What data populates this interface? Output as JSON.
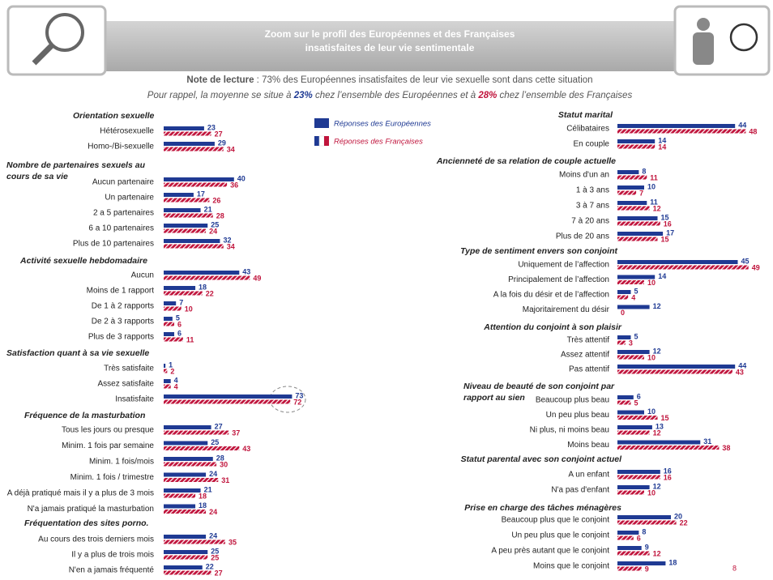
{
  "header": {
    "title_lines": [
      "Zoom sur le profil des Européennes et des Françaises",
      "insatisfaites de leur vie sentimentale"
    ]
  },
  "note": {
    "label": "Note de lecture",
    "text": " : 73% des Européennes insatisfaites de leur vie sexuelle sont dans cette situation"
  },
  "reminder": {
    "parts": [
      "Pour rappel, la moyenne se situe à ",
      "23%",
      " chez l’ensemble des Européennes et à ",
      "28%",
      " chez l’ensemble des Françaises"
    ]
  },
  "legend": {
    "europe": "Réponses des Européennes",
    "france": "Réponses des Françaises"
  },
  "colors": {
    "europe": "#1f3a93",
    "france": "#c0143c"
  },
  "sections": [
    {
      "title": [
        "Orientation sexuelle"
      ],
      "categories": [
        "Hétérosexuelle",
        "Homo-/Bi-sexuelle"
      ],
      "europe": [
        23,
        29
      ],
      "france": [
        27,
        34
      ]
    },
    {
      "title": [
        "Nombre de partenaires sexuels au",
        "cours de sa vie"
      ],
      "categories": [
        "Aucun partenaire",
        "Un partenaire",
        "2 a 5 partenaires",
        "6 a 10 partenaires",
        "Plus de 10 partenaires"
      ],
      "europe": [
        40,
        17,
        21,
        25,
        32
      ],
      "france": [
        36,
        26,
        28,
        24,
        34
      ]
    },
    {
      "title": [
        "Activité sexuelle hebdomadaire"
      ],
      "categories": [
        "Aucun",
        "Moins de 1 rapport",
        "De 1 à 2 rapports",
        "De 2 à 3 rapports",
        "Plus de 3 rapports"
      ],
      "europe": [
        43,
        18,
        7,
        5,
        6
      ],
      "france": [
        49,
        22,
        10,
        6,
        11
      ]
    },
    {
      "title": [
        "Satisfaction quant à sa vie sexuelle"
      ],
      "categories": [
        "Très satisfaite",
        "Assez satisfaite",
        "Insatisfaite"
      ],
      "europe": [
        1,
        4,
        73
      ],
      "france": [
        2,
        4,
        72
      ]
    },
    {
      "title": [
        "Fréquence de la masturbation"
      ],
      "categories": [
        "Tous les jours ou presque",
        "Minim. 1 fois par semaine",
        "Minim. 1 fois/mois",
        "Minim. 1 fois / trimestre",
        "A déjà pratiqué mais il y a plus de 3 mois",
        "N'a jamais pratiqué la masturbation"
      ],
      "europe": [
        27,
        25,
        28,
        24,
        21,
        18
      ],
      "france": [
        37,
        43,
        30,
        31,
        18,
        24
      ]
    },
    {
      "title": [
        "Fréquentation des sites porno."
      ],
      "categories": [
        "Au cours des trois derniers mois",
        "Il y a plus de trois mois",
        "N'en a jamais fréquenté"
      ],
      "europe": [
        24,
        25,
        22
      ],
      "france": [
        35,
        25,
        27
      ]
    },
    {
      "title": [
        "Statut marital"
      ],
      "categories": [
        "Célibataires",
        "En couple"
      ],
      "europe": [
        44,
        14
      ],
      "france": [
        48,
        14
      ]
    },
    {
      "title": [
        "Ancienneté de sa relation de couple actuelle"
      ],
      "categories": [
        "Moins d'un an",
        "1 à 3 ans",
        "3 à 7 ans",
        "7 à 20 ans",
        "Plus de 20 ans"
      ],
      "europe": [
        8,
        10,
        11,
        15,
        17
      ],
      "france": [
        11,
        7,
        12,
        16,
        15
      ]
    },
    {
      "title": [
        "Type de sentiment envers son conjoint"
      ],
      "categories": [
        "Uniquement de l’affection",
        "Principalement de l’affection",
        "A la fois du désir et de l’affection",
        "Majoritairement du désir"
      ],
      "europe": [
        45,
        14,
        5,
        12
      ],
      "france": [
        49,
        10,
        4,
        0
      ]
    },
    {
      "title": [
        "Attention du conjoint à son plaisir"
      ],
      "categories": [
        "Très attentif",
        "Assez attentif",
        "Pas attentif"
      ],
      "europe": [
        5,
        12,
        44
      ],
      "france": [
        3,
        10,
        43
      ]
    },
    {
      "title": [
        "Niveau de beauté de son conjoint par",
        "rapport au sien"
      ],
      "categories": [
        "Beaucoup plus beau",
        "Un peu plus beau",
        "Ni plus, ni moins beau",
        "Moins beau"
      ],
      "europe": [
        6,
        10,
        13,
        31
      ],
      "france": [
        5,
        15,
        12,
        38
      ]
    },
    {
      "title": [
        "Statut parental avec son conjoint actuel"
      ],
      "categories": [
        "A un enfant",
        "N'a pas d'enfant"
      ],
      "europe": [
        16,
        12
      ],
      "france": [
        16,
        10
      ]
    },
    {
      "title": [
        "Prise en charge des tâches ménagères"
      ],
      "categories": [
        "Beaucoup plus que le conjoint",
        "Un peu plus que le conjoint",
        "A peu près autant que le conjoint",
        "Moins que le conjoint"
      ],
      "europe": [
        20,
        8,
        9,
        18
      ],
      "france": [
        22,
        6,
        12,
        9
      ]
    }
  ],
  "page_number": "8"
}
